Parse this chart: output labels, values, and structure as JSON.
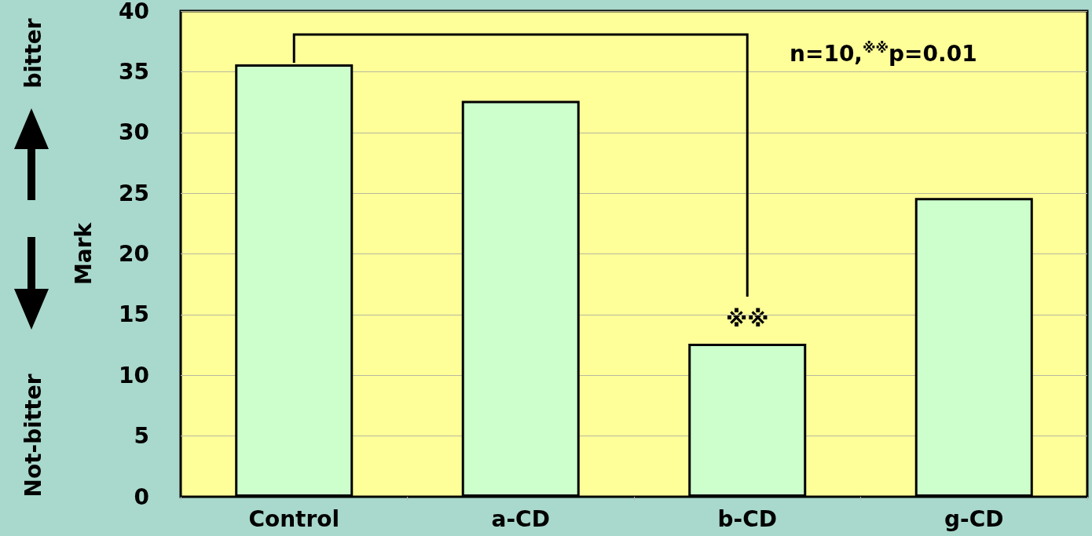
{
  "chart_data": {
    "type": "bar",
    "ylabel": "Mark",
    "categories": [
      "Control",
      "a-CD",
      "b-CD",
      "g-CD"
    ],
    "values": [
      35.6,
      32.6,
      12.6,
      24.6
    ],
    "color": "#ccffcc",
    "ylim": [
      0,
      40
    ],
    "yticks": [
      0,
      5,
      10,
      15,
      20,
      25,
      30,
      35,
      40
    ],
    "grid": "y",
    "annotations": [
      "n=10,$^{※※}$p=0.01",
      "bitter",
      "Not-bitter",
      "※※"
    ]
  }
}
